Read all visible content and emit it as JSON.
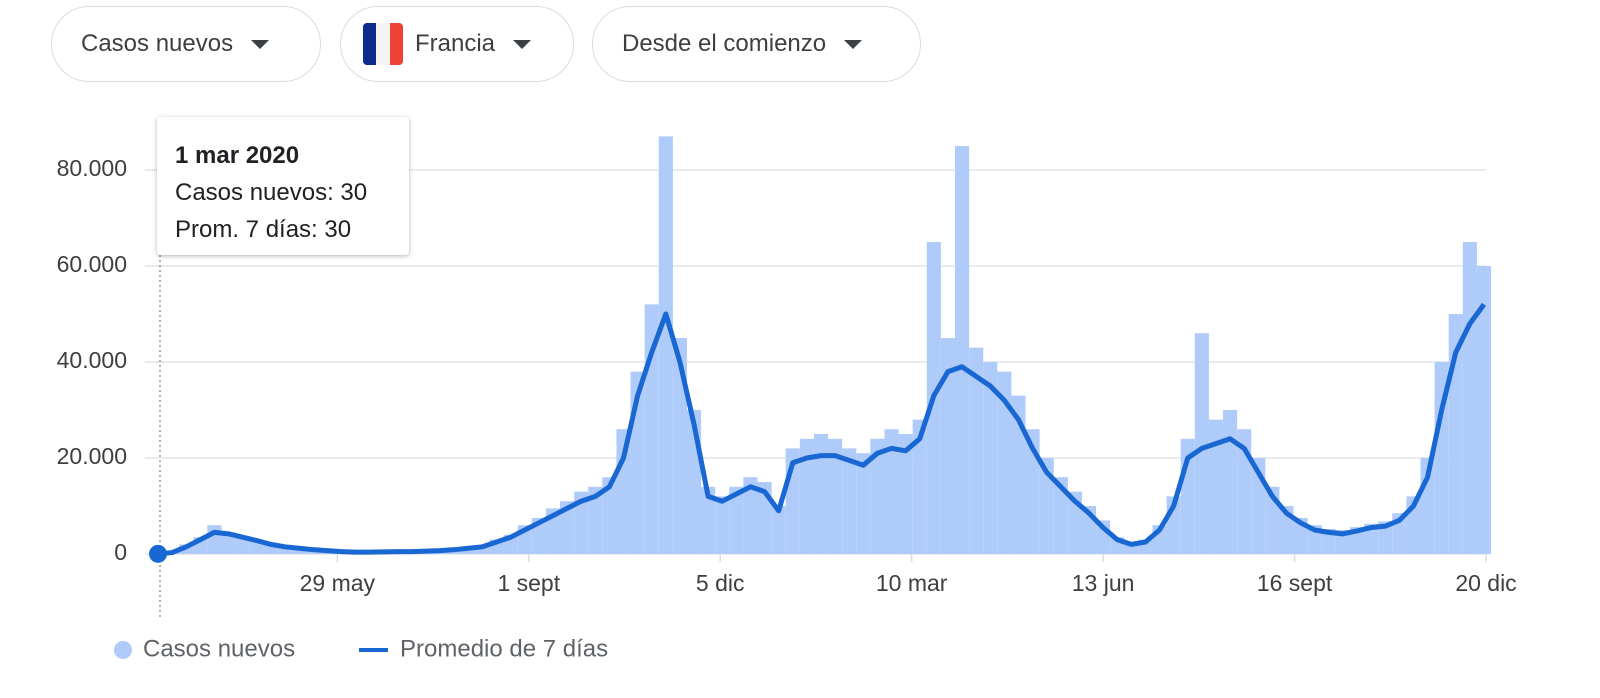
{
  "controls": {
    "metric": "Casos nuevos",
    "country": "Francia",
    "range": "Desde el comienzo"
  },
  "tooltip": {
    "title": "1 mar 2020",
    "lines": [
      "Casos nuevos: 30",
      "Prom. 7 días: 30"
    ]
  },
  "chart_data": {
    "type": "bar-line",
    "x": [
      0,
      7,
      14,
      21,
      28,
      35,
      42,
      49,
      56,
      63,
      70,
      77,
      84,
      91,
      98,
      105,
      112,
      119,
      126,
      133,
      140,
      147,
      154,
      161,
      168,
      175,
      182,
      189,
      196,
      203,
      210,
      217,
      224,
      231,
      238,
      245,
      252,
      259,
      266,
      273,
      280,
      287,
      294,
      301,
      308,
      315,
      322,
      329,
      336,
      343,
      350,
      357,
      364,
      371,
      378,
      385,
      392,
      399,
      406,
      413,
      420,
      427,
      434,
      441,
      448,
      455,
      462,
      469,
      476,
      483,
      490,
      497,
      504,
      511,
      518,
      525,
      532,
      539,
      546,
      553,
      560,
      567,
      574,
      581,
      588,
      595,
      602,
      609,
      616,
      623,
      630,
      637,
      644,
      651,
      658
    ],
    "xlim": [
      0,
      659
    ],
    "xticks": [
      {
        "value": 89,
        "label": "29 may"
      },
      {
        "value": 184,
        "label": "1 sept"
      },
      {
        "value": 279,
        "label": "5 dic"
      },
      {
        "value": 374,
        "label": "10 mar"
      },
      {
        "value": 469,
        "label": "13 jun"
      },
      {
        "value": 564,
        "label": "16 sept"
      },
      {
        "value": 659,
        "label": "20 dic"
      }
    ],
    "ylim": [
      0,
      90000
    ],
    "yticks": [
      0,
      {
        "value": 20000,
        "label": "20.000"
      },
      {
        "value": 40000,
        "label": "40.000"
      },
      {
        "value": 60000,
        "label": "60.000"
      },
      {
        "value": 80000,
        "label": "80.000"
      }
    ],
    "grid": true,
    "series": [
      {
        "name": "Casos nuevos",
        "type": "bar",
        "color": "#aecbfa",
        "values": [
          30,
          400,
          2000,
          3500,
          6000,
          4500,
          3800,
          3000,
          2200,
          1600,
          1300,
          1000,
          800,
          600,
          500,
          450,
          500,
          550,
          550,
          700,
          800,
          1000,
          1400,
          1800,
          3000,
          4000,
          6000,
          7500,
          9500,
          11000,
          13000,
          14000,
          16000,
          26000,
          38000,
          52000,
          87000,
          45000,
          30000,
          14000,
          12000,
          14000,
          16000,
          15000,
          10000,
          22000,
          24000,
          25000,
          24000,
          22000,
          21000,
          24000,
          26000,
          25000,
          28000,
          65000,
          45000,
          85000,
          43000,
          40000,
          38000,
          33000,
          26000,
          20000,
          16000,
          13000,
          10000,
          7000,
          3500,
          2400,
          3000,
          6000,
          12000,
          24000,
          46000,
          28000,
          30000,
          26000,
          20000,
          14000,
          10000,
          7500,
          6000,
          5200,
          5000,
          5600,
          6300,
          6800,
          8500,
          12000,
          20000,
          40000,
          50000,
          65000,
          60000
        ]
      },
      {
        "name": "Promedio de 7 días",
        "type": "line",
        "color": "#1967d2",
        "values": [
          30,
          300,
          1500,
          3000,
          4500,
          4200,
          3500,
          2800,
          2000,
          1500,
          1200,
          900,
          700,
          500,
          400,
          400,
          450,
          500,
          500,
          600,
          700,
          900,
          1200,
          1500,
          2500,
          3500,
          5000,
          6500,
          8000,
          9500,
          11000,
          12000,
          14000,
          20000,
          33000,
          42000,
          50000,
          40000,
          27000,
          12000,
          11000,
          12500,
          14000,
          13000,
          9000,
          19000,
          20000,
          20500,
          20500,
          19500,
          18500,
          21000,
          22000,
          21500,
          24000,
          33000,
          38000,
          39000,
          37000,
          35000,
          32000,
          28000,
          22000,
          17000,
          14000,
          11000,
          8500,
          5500,
          3000,
          2000,
          2500,
          5000,
          10000,
          20000,
          22000,
          23000,
          24000,
          22000,
          17000,
          12000,
          8500,
          6500,
          5000,
          4500,
          4200,
          4800,
          5500,
          5800,
          7000,
          10000,
          16000,
          30000,
          42000,
          48000,
          52000
        ]
      }
    ]
  }
}
